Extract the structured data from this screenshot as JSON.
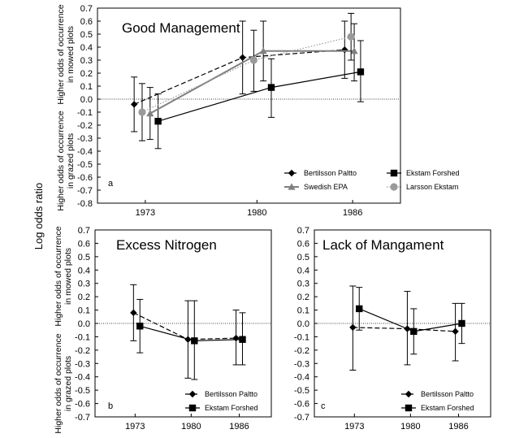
{
  "figure": {
    "y_title": "Log odds ratio",
    "side_label_top": "Higher odds of occurrence in mowed plots",
    "side_label_bottom": "Higher odds of occurrence in grazed plots"
  },
  "chart_data": [
    {
      "type": "line",
      "panel": "a",
      "title": "Good Management",
      "categories": [
        "1973",
        "1980",
        "1986"
      ],
      "ylim": [
        -0.8,
        0.7
      ],
      "yticks": [
        "0.7",
        "0.6",
        "0.5",
        "0.4",
        "0.3",
        "0.2",
        "0.1",
        "0.0",
        "-0.1",
        "-0.2",
        "-0.3",
        "-0.4",
        "-0.5",
        "-0.6",
        "-0.7",
        "-0.8"
      ],
      "zero_line": true,
      "grid": false,
      "legend_position": "bottom",
      "series": [
        {
          "name": "Bertilsson Paltto",
          "color": "#000000",
          "line": "dashed",
          "marker": "diamond",
          "x": [
            1972.3,
            1979.1,
            1985.5
          ],
          "values": [
            -0.04,
            0.32,
            0.38
          ],
          "err_low": [
            -0.25,
            0.04,
            0.16
          ],
          "err_high": [
            0.17,
            0.6,
            0.6
          ]
        },
        {
          "name": "Ekstam Forshed",
          "color": "#000000",
          "line": "solid",
          "marker": "square",
          "x": [
            1973.8,
            1980.9,
            1986.5
          ],
          "values": [
            -0.17,
            0.09,
            0.21
          ],
          "err_low": [
            -0.38,
            -0.14,
            -0.02
          ],
          "err_high": [
            0.04,
            0.31,
            0.45
          ]
        },
        {
          "name": "Swedish EPA",
          "color": "#808080",
          "line": "solid",
          "marker": "triangle",
          "x": [
            1973.3,
            1980.4,
            1986.1
          ],
          "values": [
            -0.11,
            0.37,
            0.37
          ],
          "err_low": [
            -0.31,
            0.14,
            0.14
          ],
          "err_high": [
            0.09,
            0.6,
            0.58
          ]
        },
        {
          "name": "Larsson Ekstam",
          "color": "#9a9a9a",
          "line": "dotted",
          "marker": "circle",
          "x": [
            1972.8,
            1979.8,
            1985.9
          ],
          "values": [
            -0.1,
            0.3,
            0.48
          ],
          "err_low": [
            -0.32,
            0.06,
            0.3
          ],
          "err_high": [
            0.12,
            0.53,
            0.66
          ]
        }
      ]
    },
    {
      "type": "line",
      "panel": "b",
      "title": "Excess Nitrogen",
      "categories": [
        "1973",
        "1980",
        "1986"
      ],
      "ylim": [
        -0.7,
        0.7
      ],
      "yticks": [
        "0.7",
        "0.6",
        "0.5",
        "0.4",
        "0.3",
        "0.2",
        "0.1",
        "0.0",
        "-0.1",
        "-0.2",
        "-0.3",
        "-0.4",
        "-0.5",
        "-0.6",
        "-0.7"
      ],
      "zero_line": true,
      "grid": false,
      "legend_position": "bottom-right",
      "series": [
        {
          "name": "Bertilsson Paltto",
          "color": "#000000",
          "line": "dashed",
          "marker": "diamond",
          "x": [
            1972.8,
            1979.6,
            1985.6
          ],
          "values": [
            0.08,
            -0.12,
            -0.11
          ],
          "err_low": [
            -0.13,
            -0.41,
            -0.31
          ],
          "err_high": [
            0.29,
            0.17,
            0.1
          ]
        },
        {
          "name": "Ekstam Forshed",
          "color": "#000000",
          "line": "solid",
          "marker": "square",
          "x": [
            1973.6,
            1980.4,
            1986.4
          ],
          "values": [
            -0.02,
            -0.13,
            -0.12
          ],
          "err_low": [
            -0.22,
            -0.42,
            -0.31
          ],
          "err_high": [
            0.18,
            0.17,
            0.08
          ]
        }
      ]
    },
    {
      "type": "line",
      "panel": "c",
      "title": "Lack of Mangament",
      "categories": [
        "1973",
        "1980",
        "1986"
      ],
      "ylim": [
        -0.7,
        0.7
      ],
      "yticks": [
        "0.7",
        "0.6",
        "0.5",
        "0.4",
        "0.3",
        "0.2",
        "0.1",
        "0.0",
        "-0.1",
        "-0.2",
        "-0.3",
        "-0.4",
        "-0.5",
        "-0.6",
        "-0.7"
      ],
      "zero_line": true,
      "grid": false,
      "legend_position": "bottom-right",
      "series": [
        {
          "name": "Bertilsson Paltto",
          "color": "#000000",
          "line": "dashed",
          "marker": "diamond",
          "x": [
            1972.8,
            1979.6,
            1985.6
          ],
          "values": [
            -0.03,
            -0.04,
            -0.06
          ],
          "err_low": [
            -0.35,
            -0.31,
            -0.28
          ],
          "err_high": [
            0.28,
            0.24,
            0.15
          ]
        },
        {
          "name": "Ekstam Forshed",
          "color": "#000000",
          "line": "solid",
          "marker": "square",
          "x": [
            1973.6,
            1980.4,
            1986.4
          ],
          "values": [
            0.11,
            -0.06,
            0.0
          ],
          "err_low": [
            -0.05,
            -0.23,
            -0.15
          ],
          "err_high": [
            0.27,
            0.11,
            0.15
          ]
        }
      ]
    }
  ]
}
